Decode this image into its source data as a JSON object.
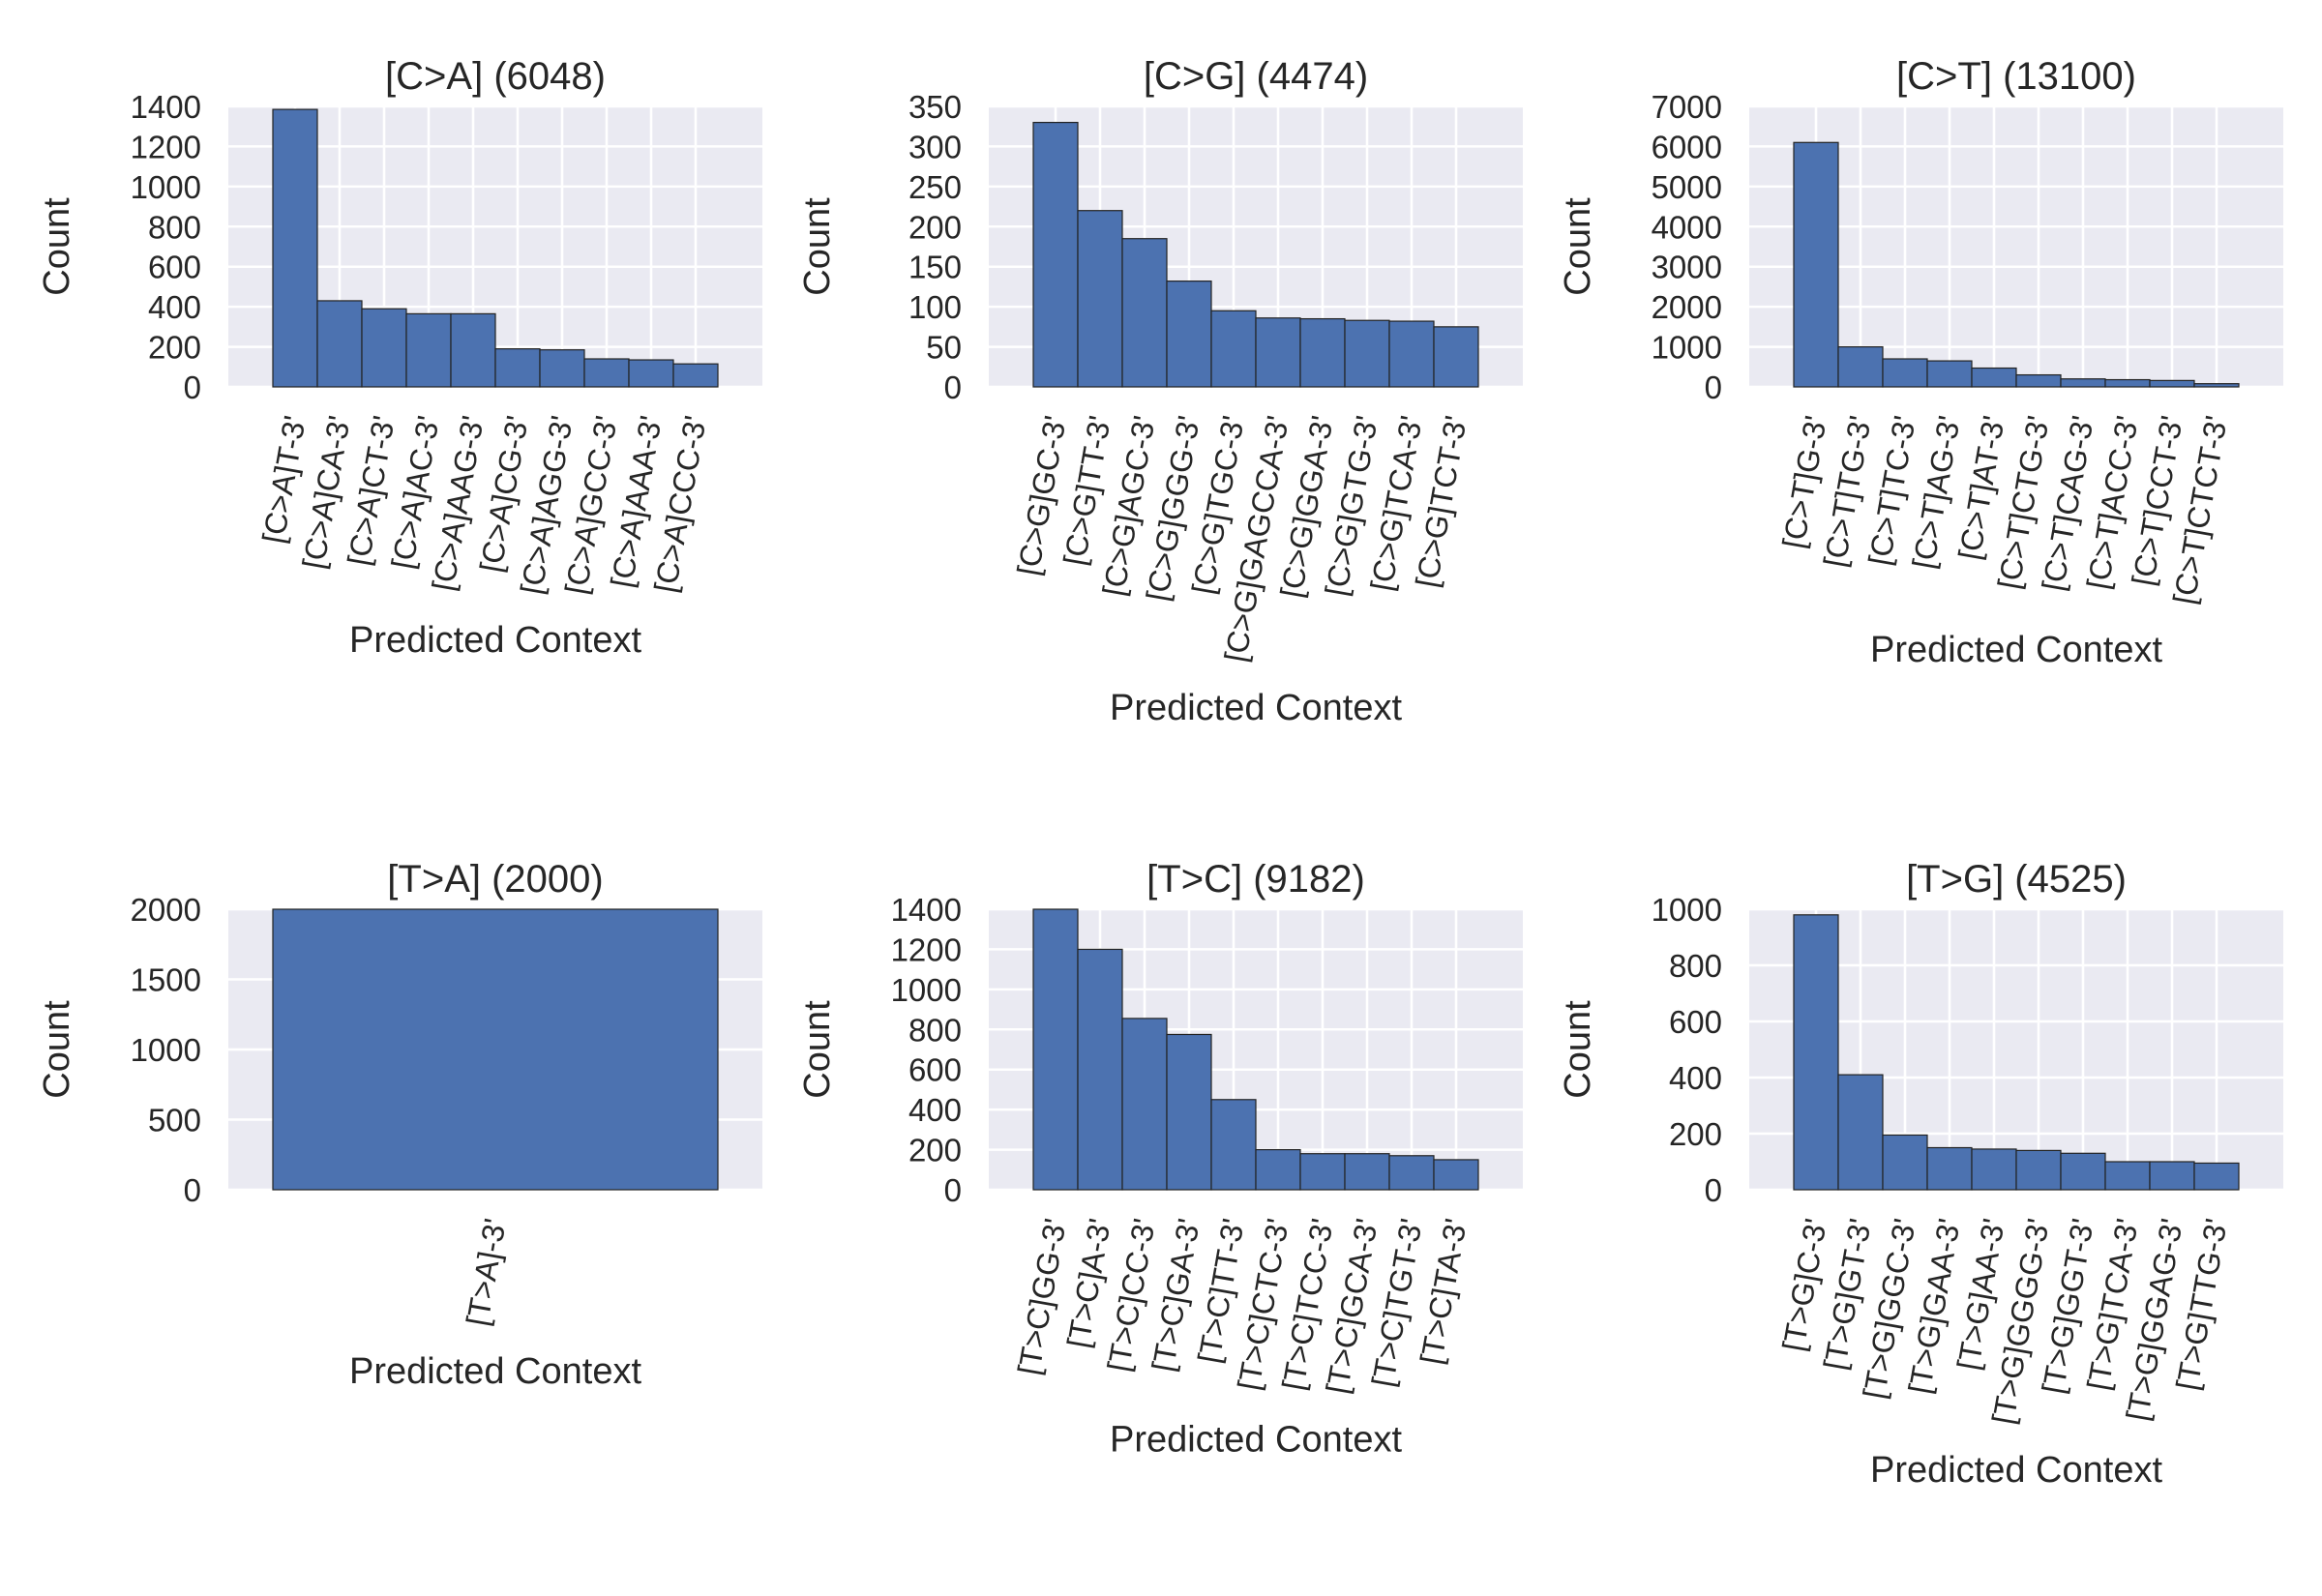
{
  "chart_data": [
    {
      "type": "bar",
      "title": "[C>A] (6048)",
      "xlabel": "Predicted Context",
      "ylabel": "Count",
      "categories": [
        "[C>A]T-3'",
        "[C>A]CA-3'",
        "[C>A]CT-3'",
        "[C>A]AC-3'",
        "[C>A]AAG-3'",
        "[C>A]CG-3'",
        "[C>A]AGG-3'",
        "[C>A]GCC-3'",
        "[C>A]AAA-3'",
        "[C>A]CCC-3'"
      ],
      "values": [
        1385,
        430,
        390,
        365,
        365,
        190,
        185,
        140,
        135,
        115
      ],
      "ylim": [
        0,
        1400
      ],
      "yticks": [
        "0",
        "200",
        "400",
        "600",
        "800",
        "1000",
        "1200",
        "1400"
      ],
      "xlim": [
        -1.5,
        10.5
      ],
      "color": "#4C72B0",
      "grid": true
    },
    {
      "type": "bar",
      "title": "[C>G] (4474)",
      "xlabel": "Predicted Context",
      "ylabel": "Count",
      "categories": [
        "[C>G]GC-3'",
        "[C>G]TT-3'",
        "[C>G]AGC-3'",
        "[C>G]GGG-3'",
        "[C>G]TGC-3'",
        "[C>G]GAGCCA-3'",
        "[C>G]GGA-3'",
        "[C>G]GTG-3'",
        "[C>G]TCA-3'",
        "[C>G]TCT-3'"
      ],
      "values": [
        330,
        220,
        185,
        132,
        95,
        86,
        85,
        83,
        82,
        75
      ],
      "ylim": [
        0,
        350
      ],
      "yticks": [
        "0",
        "50",
        "100",
        "150",
        "200",
        "250",
        "300",
        "350"
      ],
      "xlim": [
        -1.5,
        10.5
      ],
      "color": "#4C72B0",
      "grid": true
    },
    {
      "type": "bar",
      "title": "[C>T] (13100)",
      "xlabel": "Predicted Context",
      "ylabel": "Count",
      "categories": [
        "[C>T]G-3'",
        "[C>T]TG-3'",
        "[C>T]TC-3'",
        "[C>T]AG-3'",
        "[C>T]AT-3'",
        "[C>T]CTG-3'",
        "[C>T]CAG-3'",
        "[C>T]ACC-3'",
        "[C>T]CCT-3'",
        "[C>T]CTCT-3'"
      ],
      "values": [
        6100,
        1000,
        700,
        650,
        470,
        300,
        200,
        180,
        160,
        80
      ],
      "ylim": [
        0,
        7000
      ],
      "yticks": [
        "0",
        "1000",
        "2000",
        "3000",
        "4000",
        "5000",
        "6000",
        "7000"
      ],
      "xlim": [
        -1.5,
        10.5
      ],
      "color": "#4C72B0",
      "grid": true
    },
    {
      "type": "bar",
      "title": "[T>A] (2000)",
      "xlabel": "Predicted Context",
      "ylabel": "Count",
      "categories": [
        "[T>A]-3'"
      ],
      "values": [
        2000
      ],
      "ylim": [
        0,
        2000
      ],
      "yticks": [
        "0",
        "500",
        "1000",
        "1500",
        "2000"
      ],
      "xlim": [
        -0.6,
        0.6
      ],
      "color": "#4C72B0",
      "grid": true
    },
    {
      "type": "bar",
      "title": "[T>C] (9182)",
      "xlabel": "Predicted Context",
      "ylabel": "Count",
      "categories": [
        "[T>C]GG-3'",
        "[T>C]A-3'",
        "[T>C]CC-3'",
        "[T>C]GA-3'",
        "[T>C]TT-3'",
        "[T>C]CTC-3'",
        "[T>C]TCC-3'",
        "[T>C]GCA-3'",
        "[T>C]TGT-3'",
        "[T>C]TA-3'"
      ],
      "values": [
        1400,
        1200,
        855,
        775,
        450,
        200,
        180,
        180,
        170,
        150
      ],
      "ylim": [
        0,
        1400
      ],
      "yticks": [
        "0",
        "200",
        "400",
        "600",
        "800",
        "1000",
        "1200",
        "1400"
      ],
      "xlim": [
        -1.5,
        10.5
      ],
      "color": "#4C72B0",
      "grid": true
    },
    {
      "type": "bar",
      "title": "[T>G] (4525)",
      "xlabel": "Predicted Context",
      "ylabel": "Count",
      "categories": [
        "[T>G]C-3'",
        "[T>G]GT-3'",
        "[T>G]GGC-3'",
        "[T>G]GAA-3'",
        "[T>G]AA-3'",
        "[T>G]GGGG-3'",
        "[T>G]GGT-3'",
        "[T>G]TCA-3'",
        "[T>G]GGAG-3'",
        "[T>G]TTG-3'"
      ],
      "values": [
        980,
        410,
        195,
        150,
        145,
        140,
        130,
        100,
        100,
        95
      ],
      "ylim": [
        0,
        1000
      ],
      "yticks": [
        "0",
        "200",
        "400",
        "600",
        "800",
        "1000"
      ],
      "xlim": [
        -1.5,
        10.5
      ],
      "color": "#4C72B0",
      "grid": true
    }
  ]
}
